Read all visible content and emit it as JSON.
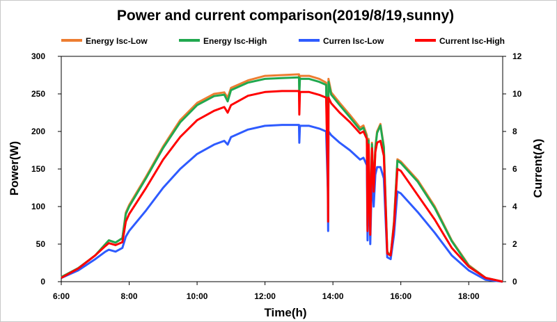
{
  "chart_data": {
    "type": "line",
    "title": "Power and  current comparison(2019/8/19,sunny)",
    "xlabel": "Time(h)",
    "ylabel": "Power(W)",
    "y2label": "Current(A)",
    "xlim": [
      6,
      19
    ],
    "ylim": [
      0,
      300
    ],
    "y2lim": [
      0,
      12
    ],
    "x_ticks": [
      6,
      8,
      10,
      12,
      14,
      16,
      18
    ],
    "x_tick_labels": [
      "6:00",
      "8:00",
      "10:00",
      "12:00",
      "14:00",
      "16:00",
      "18:00"
    ],
    "y_ticks": [
      0,
      50,
      100,
      150,
      200,
      250,
      300
    ],
    "y_tick_labels": [
      "0",
      "50",
      "100",
      "150",
      "200",
      "250",
      "300"
    ],
    "y2_ticks": [
      0,
      2,
      4,
      6,
      8,
      10,
      12
    ],
    "y2_tick_labels": [
      "0",
      "2",
      "4",
      "6",
      "8",
      "10",
      "12"
    ],
    "legend_position": "top",
    "series": [
      {
        "name": "Energy Isc-Low",
        "color": "#ED7D31",
        "axis": "left",
        "x": [
          6.0,
          6.5,
          7.0,
          7.3,
          7.4,
          7.6,
          7.8,
          7.9,
          8.0,
          8.5,
          9.0,
          9.5,
          10.0,
          10.5,
          10.8,
          10.9,
          11.0,
          11.5,
          12.0,
          12.5,
          13.0,
          13.01,
          13.03,
          13.3,
          13.6,
          13.8,
          13.85,
          13.86,
          13.87,
          13.95,
          14.2,
          14.5,
          14.8,
          14.9,
          15.0,
          15.02,
          15.05,
          15.1,
          15.15,
          15.2,
          15.25,
          15.3,
          15.4,
          15.5,
          15.6,
          15.7,
          15.8,
          15.9,
          16.0,
          16.5,
          17.0,
          17.5,
          18.0,
          18.5,
          19.0
        ],
        "y": [
          6,
          18,
          35,
          50,
          55,
          52,
          58,
          92,
          102,
          140,
          180,
          215,
          238,
          250,
          252,
          245,
          258,
          268,
          274,
          275,
          276,
          255,
          274,
          274,
          270,
          265,
          140,
          100,
          270,
          252,
          238,
          222,
          205,
          208,
          195,
          75,
          190,
          65,
          185,
          120,
          180,
          200,
          210,
          180,
          40,
          35,
          80,
          163,
          160,
          135,
          100,
          55,
          22,
          5,
          0
        ]
      },
      {
        "name": "Energy Isc-High",
        "color": "#21A84F",
        "axis": "left",
        "x": [
          6.0,
          6.5,
          7.0,
          7.3,
          7.4,
          7.6,
          7.8,
          7.9,
          8.0,
          8.5,
          9.0,
          9.5,
          10.0,
          10.5,
          10.8,
          10.9,
          11.0,
          11.5,
          12.0,
          12.5,
          13.0,
          13.01,
          13.03,
          13.3,
          13.6,
          13.8,
          13.85,
          13.86,
          13.87,
          13.95,
          14.2,
          14.5,
          14.8,
          14.9,
          15.0,
          15.02,
          15.05,
          15.1,
          15.15,
          15.2,
          15.25,
          15.3,
          15.4,
          15.5,
          15.6,
          15.7,
          15.8,
          15.9,
          16.0,
          16.5,
          17.0,
          17.5,
          18.0,
          18.5,
          19.0
        ],
        "y": [
          6,
          18,
          35,
          50,
          55,
          52,
          58,
          90,
          100,
          138,
          178,
          212,
          235,
          247,
          249,
          240,
          255,
          265,
          270,
          271,
          272,
          250,
          270,
          270,
          266,
          262,
          138,
          98,
          266,
          249,
          235,
          219,
          202,
          205,
          192,
          74,
          188,
          64,
          183,
          118,
          178,
          198,
          208,
          178,
          39,
          34,
          78,
          161,
          158,
          133,
          98,
          54,
          21,
          5,
          0
        ]
      },
      {
        "name": "Curren Isc-Low",
        "color": "#2E5BFF",
        "axis": "right",
        "x": [
          6.0,
          6.5,
          7.0,
          7.3,
          7.4,
          7.6,
          7.8,
          7.9,
          8.0,
          8.5,
          9.0,
          9.5,
          10.0,
          10.5,
          10.8,
          10.9,
          11.0,
          11.5,
          12.0,
          12.5,
          13.0,
          13.01,
          13.03,
          13.3,
          13.6,
          13.8,
          13.85,
          13.86,
          13.87,
          13.95,
          14.2,
          14.5,
          14.8,
          14.9,
          15.0,
          15.02,
          15.05,
          15.1,
          15.15,
          15.2,
          15.25,
          15.3,
          15.4,
          15.5,
          15.6,
          15.7,
          15.8,
          15.9,
          16.0,
          16.5,
          17.0,
          17.5,
          18.0,
          18.5,
          19.0
        ],
        "y": [
          0.2,
          0.6,
          1.2,
          1.6,
          1.7,
          1.6,
          1.8,
          2.4,
          2.7,
          3.8,
          5.0,
          6.0,
          6.8,
          7.3,
          7.5,
          7.3,
          7.7,
          8.1,
          8.3,
          8.35,
          8.35,
          7.4,
          8.3,
          8.3,
          8.15,
          8.0,
          5.0,
          2.7,
          8.0,
          7.8,
          7.4,
          7.0,
          6.5,
          6.6,
          6.2,
          2.2,
          6.0,
          2.0,
          5.8,
          4.0,
          5.7,
          6.1,
          6.1,
          5.5,
          1.3,
          1.2,
          2.5,
          4.8,
          4.7,
          3.7,
          2.6,
          1.4,
          0.6,
          0.1,
          0.0
        ]
      },
      {
        "name": "Current Isc-High",
        "color": "#FF0000",
        "axis": "right",
        "x": [
          6.0,
          6.5,
          7.0,
          7.3,
          7.4,
          7.6,
          7.8,
          7.9,
          8.0,
          8.5,
          9.0,
          9.5,
          10.0,
          10.5,
          10.8,
          10.9,
          11.0,
          11.5,
          12.0,
          12.5,
          13.0,
          13.01,
          13.03,
          13.3,
          13.6,
          13.8,
          13.85,
          13.86,
          13.87,
          13.95,
          14.2,
          14.5,
          14.8,
          14.9,
          15.0,
          15.02,
          15.05,
          15.1,
          15.15,
          15.2,
          15.25,
          15.3,
          15.4,
          15.5,
          15.6,
          15.7,
          15.8,
          15.9,
          16.0,
          16.5,
          17.0,
          17.5,
          18.0,
          18.5,
          19.0
        ],
        "y": [
          0.2,
          0.7,
          1.4,
          1.9,
          2.05,
          1.95,
          2.1,
          3.2,
          3.6,
          5.0,
          6.5,
          7.7,
          8.6,
          9.1,
          9.3,
          9.0,
          9.4,
          9.9,
          10.1,
          10.15,
          10.15,
          8.9,
          10.1,
          10.1,
          9.95,
          9.8,
          5.5,
          3.2,
          9.8,
          9.5,
          9.0,
          8.5,
          7.9,
          8.0,
          7.6,
          2.7,
          7.3,
          2.5,
          7.1,
          4.8,
          6.9,
          7.4,
          7.5,
          6.7,
          1.5,
          1.4,
          3.0,
          6.0,
          5.9,
          4.6,
          3.3,
          1.8,
          0.8,
          0.2,
          0.0
        ]
      }
    ]
  }
}
